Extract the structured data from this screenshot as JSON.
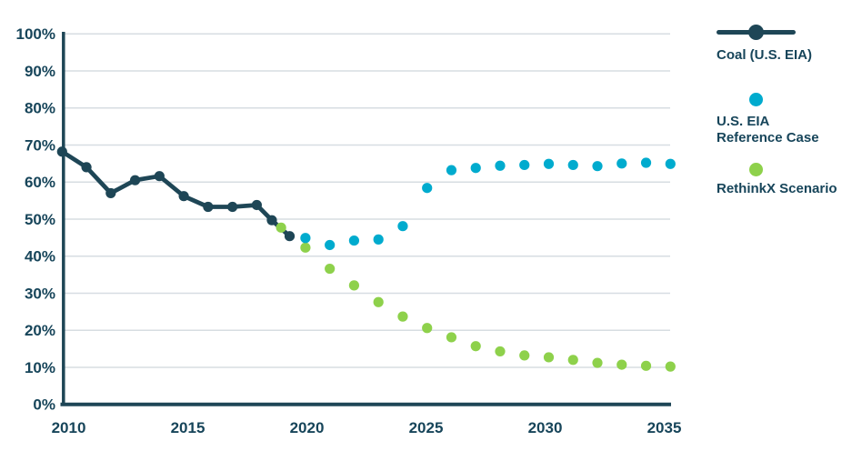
{
  "chart_data": {
    "type": "line",
    "title": "",
    "xlabel": "",
    "ylabel": "",
    "xlim": [
      2009.45,
      2035.6
    ],
    "ylim": [
      0,
      100
    ],
    "grid": "horizontal",
    "x_ticks": [
      2010,
      2015,
      2020,
      2025,
      2030,
      2035
    ],
    "x_tick_labels": [
      "2010",
      "2015",
      "2020",
      "2025",
      "2030",
      "2035"
    ],
    "y_ticks": [
      0,
      10,
      20,
      30,
      40,
      50,
      60,
      70,
      80,
      90,
      100
    ],
    "y_tick_labels": [
      "0%",
      "10%",
      "20%",
      "30%",
      "40%",
      "50%",
      "60%",
      "70%",
      "80%",
      "90%",
      "100%"
    ],
    "legend_position": "right",
    "series": [
      {
        "name": "Coal (U.S. EIA)",
        "type": "line-markers",
        "color": "#1e4656",
        "x": [
          2010,
          2011,
          2012,
          2013,
          2014,
          2015,
          2016,
          2017,
          2018,
          2018.62,
          2019.35
        ],
        "values": [
          68.2,
          64.0,
          57.0,
          60.5,
          61.6,
          56.2,
          53.3,
          53.3,
          53.8,
          49.7,
          45.4
        ]
      },
      {
        "name": "U.S. EIA Reference Case",
        "type": "scatter",
        "color": "#00abce",
        "x": [
          2020,
          2021,
          2022,
          2023,
          2024,
          2025,
          2026,
          2027,
          2028,
          2029,
          2030,
          2031,
          2032,
          2033,
          2034,
          2035
        ],
        "values": [
          44.9,
          43.0,
          44.2,
          44.5,
          48.1,
          58.4,
          63.2,
          63.8,
          64.4,
          64.6,
          64.9,
          64.6,
          64.3,
          65.0,
          65.2,
          64.9
        ]
      },
      {
        "name": "RethinkX Scenario",
        "type": "scatter",
        "color": "#8ed14b",
        "x": [
          2019,
          2020,
          2021,
          2022,
          2023,
          2024,
          2025,
          2026,
          2027,
          2028,
          2029,
          2030,
          2031,
          2032,
          2033,
          2034,
          2035
        ],
        "values": [
          47.7,
          42.3,
          36.6,
          32.1,
          27.6,
          23.7,
          20.6,
          18.1,
          15.7,
          14.3,
          13.2,
          12.7,
          12.0,
          11.2,
          10.7,
          10.4,
          10.2
        ]
      }
    ]
  },
  "legend": {
    "items": [
      {
        "id": "coal",
        "marker": "line-dot",
        "color": "#1e4656",
        "label_line1": "Coal (U.S. EIA)",
        "label_line2": ""
      },
      {
        "id": "eia-reference",
        "marker": "dot",
        "color": "#00abce",
        "label_line1": "U.S. EIA",
        "label_line2": "Reference Case"
      },
      {
        "id": "rethinkx",
        "marker": "dot",
        "color": "#8ed14b",
        "label_line1": "RethinkX Scenario",
        "label_line2": ""
      }
    ]
  },
  "colors": {
    "navy": "#1e4656",
    "teal": "#00abce",
    "green": "#8ed14b",
    "axis_text": "#17455a",
    "gridline": "#d7dde2",
    "background": "#ffffff"
  }
}
